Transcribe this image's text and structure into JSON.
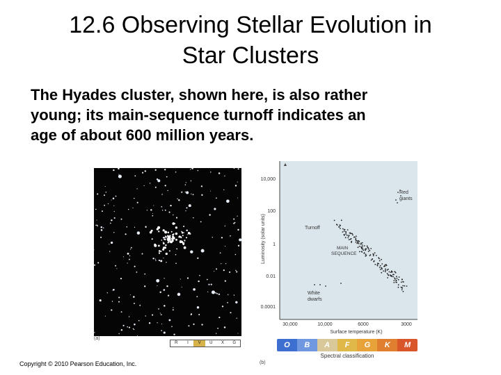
{
  "slide": {
    "title_line1": "12.6 Observing Stellar Evolution in",
    "title_line2": "Star Clusters",
    "body_line1": "The Hyades cluster, shown here, is also rather",
    "body_line2": "young; its main-sequence turnoff indicates an",
    "body_line3": "age of about 600 million years.",
    "copyright": "Copyright © 2010 Pearson Education, Inc."
  },
  "photo": {
    "panel_label": "(a)",
    "band_labels": [
      "R",
      "I",
      "V",
      "U",
      "X",
      "G"
    ],
    "band_highlight": "V"
  },
  "hr_diagram": {
    "panel_label": "(b)",
    "y_axis_label": "Luminosity (solar units)",
    "y_ticks": [
      "10,000",
      "100",
      "1",
      "0.01",
      "0.0001"
    ],
    "x_axis_label": "Surface temperature (K)",
    "x_ticks": [
      "30,000",
      "10,000",
      "6000",
      "3000"
    ],
    "annotations": {
      "red_giants_1": "Red",
      "red_giants_2": "giants",
      "turnoff": "Turnoff",
      "main_seq_1": "MAIN",
      "main_seq_2": "SEQUENCE",
      "white_dwarfs_1": "White",
      "white_dwarfs_2": "dwarfs"
    },
    "spectral_classes": [
      "O",
      "B",
      "A",
      "F",
      "G",
      "K",
      "M"
    ],
    "spectral_colors": [
      "#3d6fd0",
      "#6f98e0",
      "#d8c89a",
      "#e0b84a",
      "#e8a23a",
      "#e07f2f",
      "#d9552a"
    ],
    "spectral_caption": "Spectral classification",
    "panel_color": "#dbe6ec"
  }
}
